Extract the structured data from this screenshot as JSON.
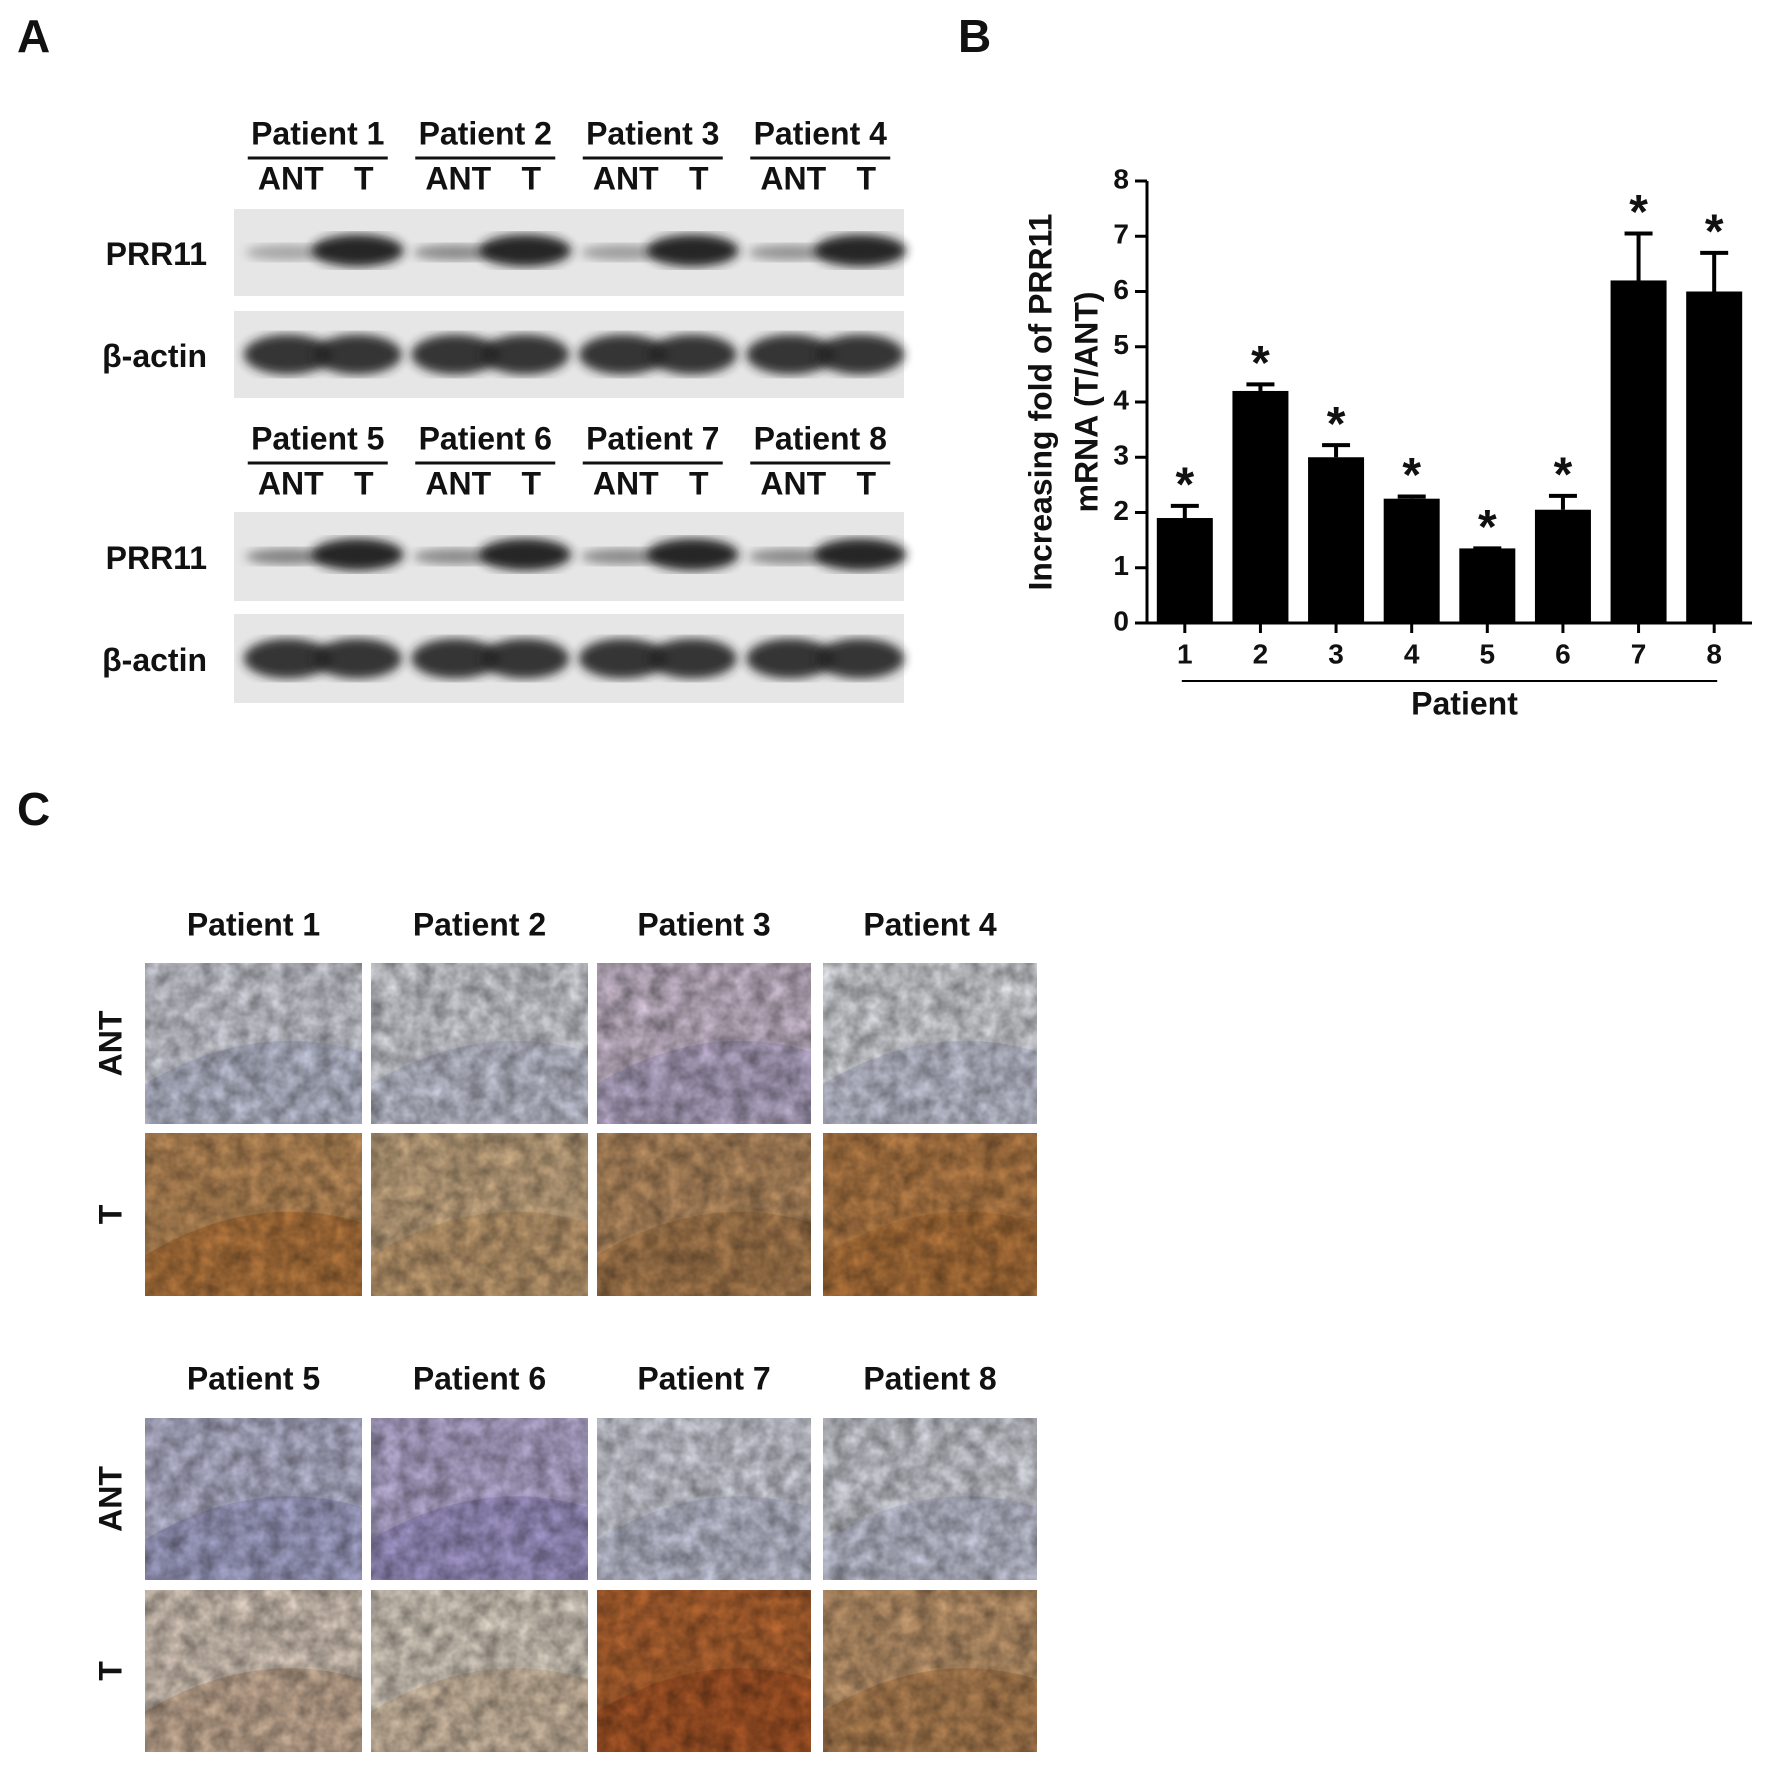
{
  "panels": [
    "A",
    "B",
    "C"
  ],
  "blot": {
    "groups": [
      {
        "patients": [
          "Patient 1",
          "Patient 2",
          "Patient 3",
          "Patient 4"
        ]
      },
      {
        "patients": [
          "Patient 5",
          "Patient 6",
          "Patient 7",
          "Patient 8"
        ]
      }
    ],
    "lanes": [
      "ANT",
      "T"
    ],
    "rows": [
      "PRR11",
      "β-actin"
    ]
  },
  "chart_data": {
    "type": "bar",
    "categories": [
      "1",
      "2",
      "3",
      "4",
      "5",
      "6",
      "7",
      "8"
    ],
    "values": [
      1.9,
      4.2,
      3.0,
      2.25,
      1.35,
      2.05,
      6.2,
      6.0
    ],
    "errors": [
      0.22,
      0.12,
      0.22,
      0.04,
      0,
      0.25,
      0.85,
      0.7
    ],
    "annotations": [
      "*",
      "*",
      "*",
      "*",
      "*",
      "*",
      "*",
      "*"
    ],
    "color": "#000000",
    "ylabel": [
      "Increasing fold of PRR11",
      "mRNA (T/ANT)"
    ],
    "xlabel": "Patient",
    "ylim": [
      0,
      8
    ],
    "yticks": [
      0,
      1,
      2,
      3,
      4,
      5,
      6,
      7,
      8
    ]
  },
  "ihc": {
    "groups": [
      {
        "patients": [
          "Patient 1",
          "Patient 2",
          "Patient 3",
          "Patient 4"
        ]
      },
      {
        "patients": [
          "Patient 5",
          "Patient 6",
          "Patient 7",
          "Patient 8"
        ]
      }
    ],
    "rows": [
      "ANT",
      "T"
    ]
  }
}
